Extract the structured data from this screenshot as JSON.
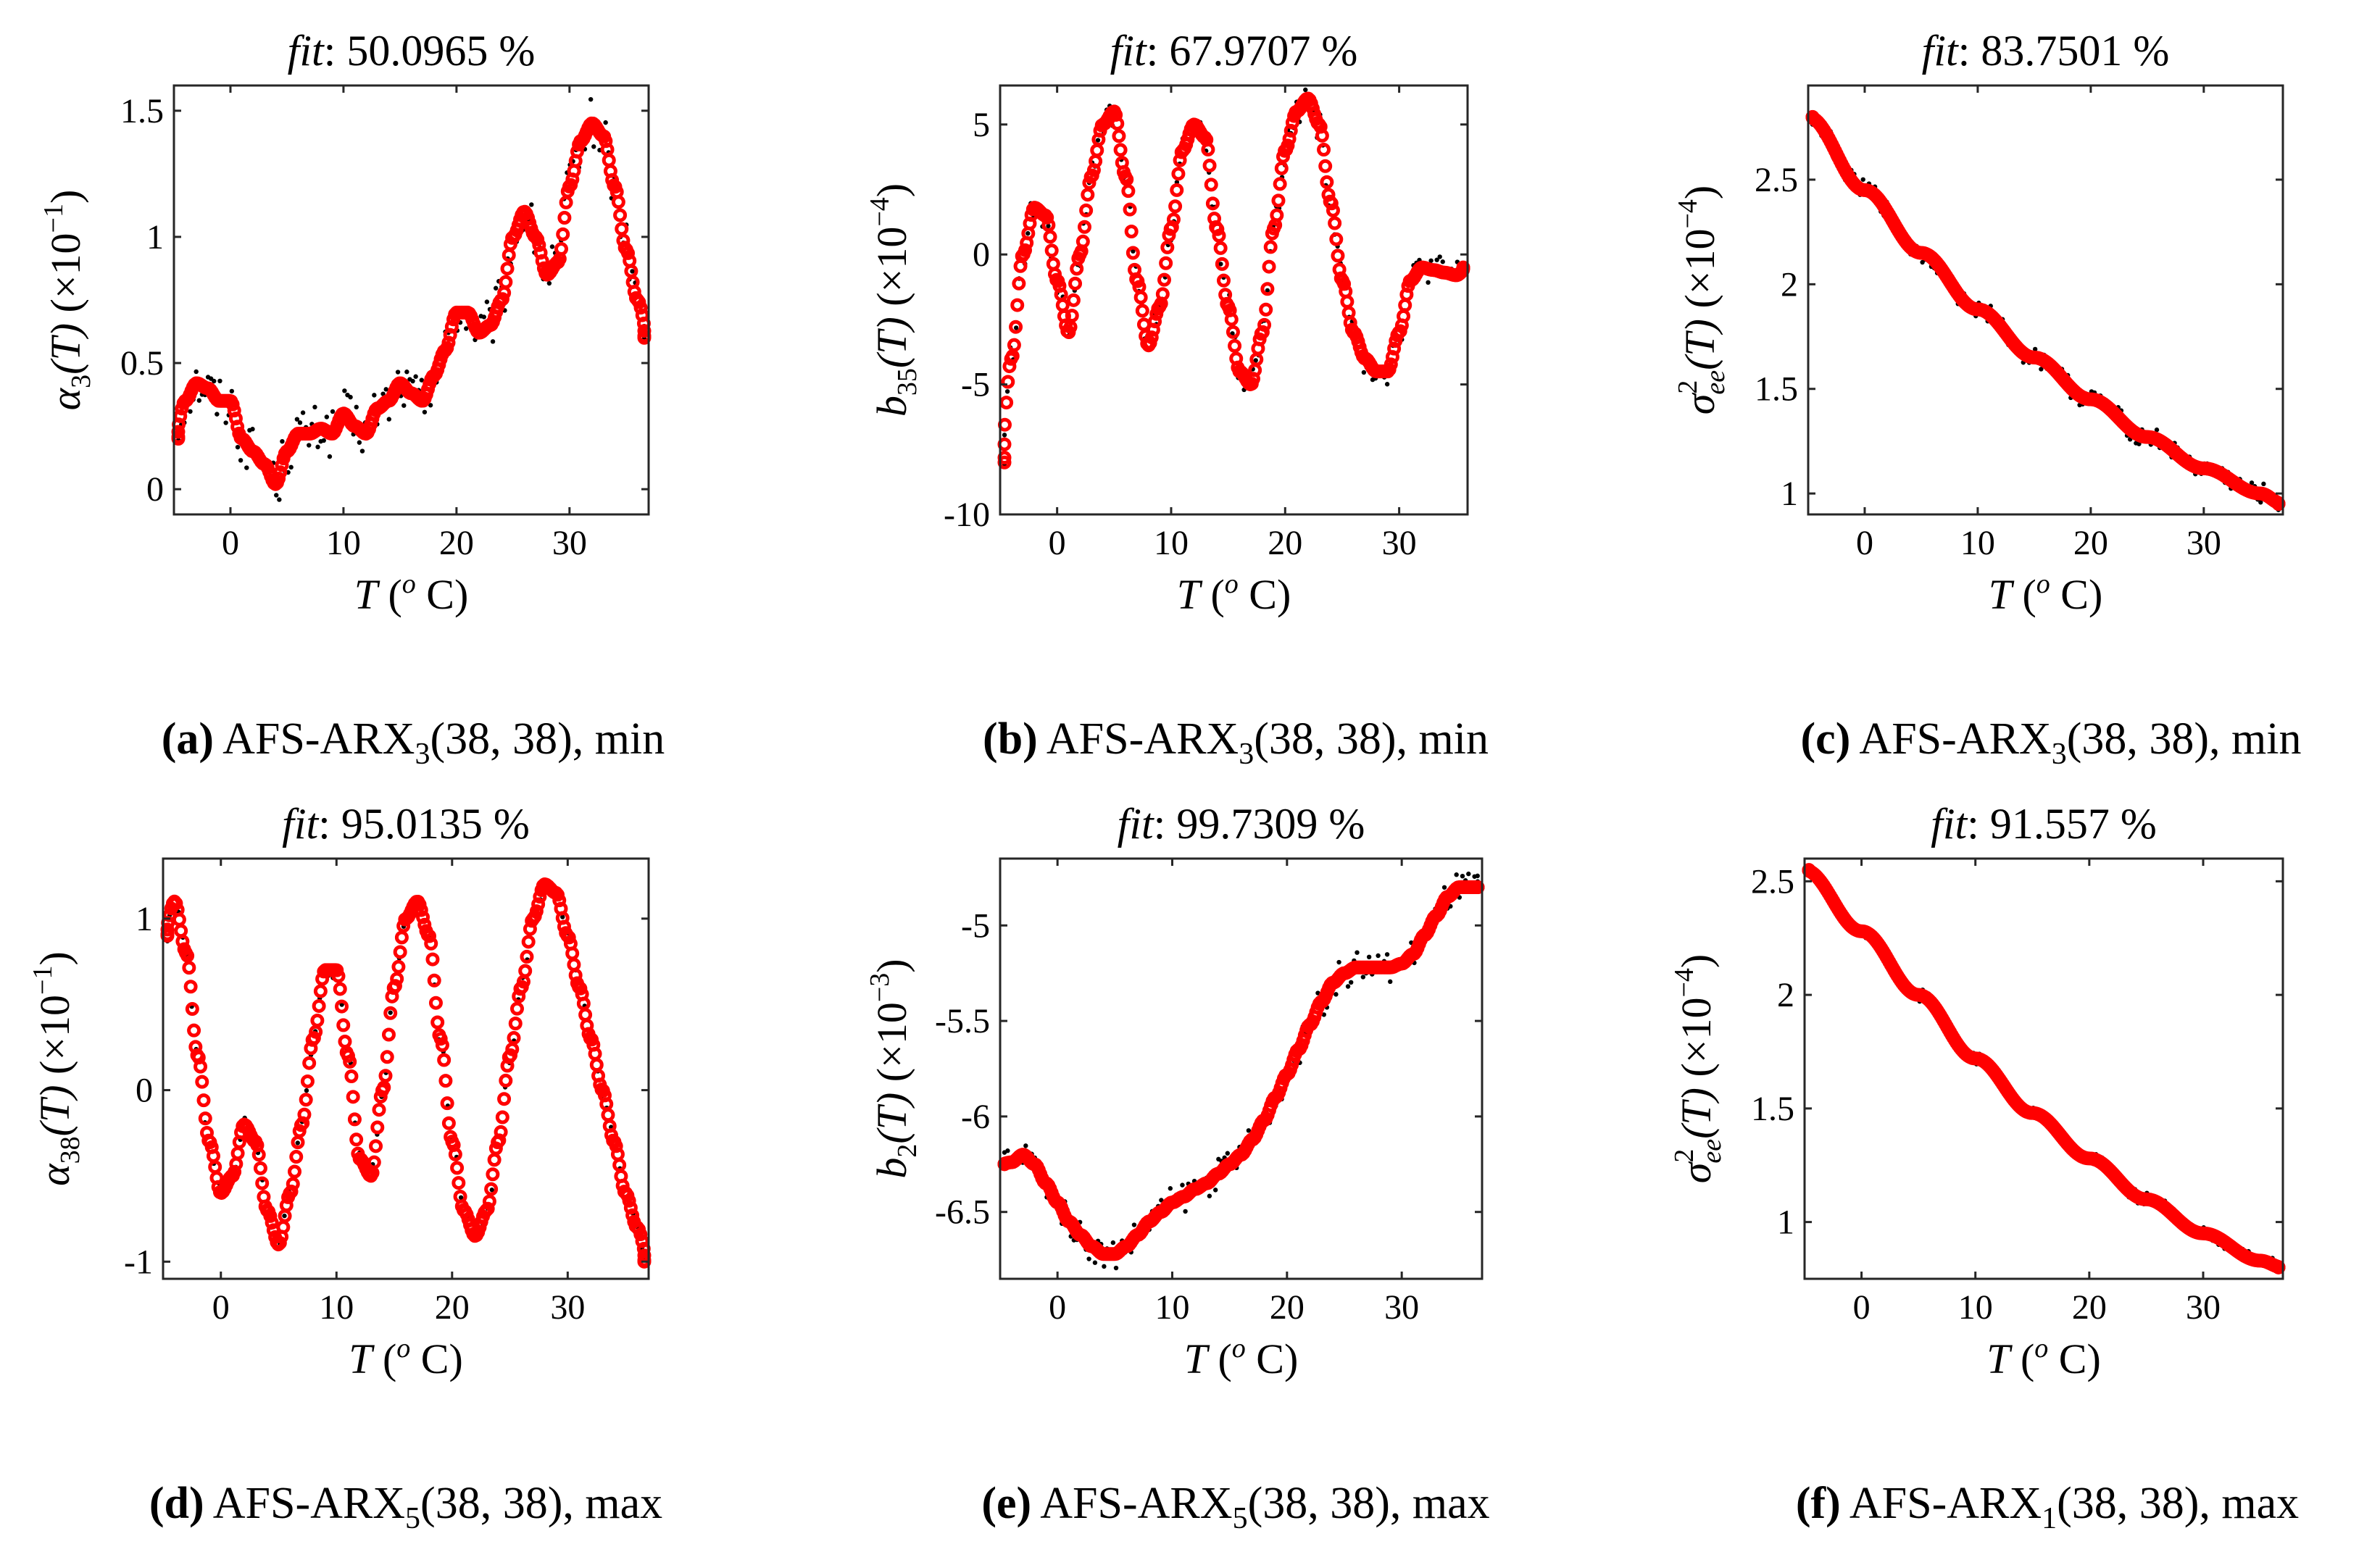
{
  "figure": {
    "colors": {
      "fit_marker": "#ff0000",
      "data_marker": "#000000",
      "axes": "#262626"
    }
  },
  "chart_data": [
    {
      "id": "a",
      "type": "scatter",
      "title_label": "fit",
      "title_value": "50.0965 %",
      "ylabel_sym": "α",
      "ylabel_sub": "3",
      "ylabel_sup": "",
      "ylabel_arg": "(T)",
      "ylabel_scale_base": "(×10",
      "ylabel_scale_exp": "−1",
      "ylabel_scale_close": ")",
      "xlabel_sym": "T",
      "xlabel_unit_open": " (",
      "xlabel_unit_sup": "o",
      "xlabel_unit_close": " C)",
      "xlim": [
        -5,
        37
      ],
      "ylim": [
        -0.1,
        1.6
      ],
      "xticks": [
        0,
        10,
        20,
        30
      ],
      "xtick_labels": [
        "0",
        "10",
        "20",
        "30"
      ],
      "yticks": [
        0,
        0.5,
        1,
        1.5
      ],
      "ytick_labels": [
        "0",
        "0.5",
        "1",
        "1.5"
      ],
      "fit_series": {
        "name": "fit",
        "x": [
          -5,
          -4,
          -3,
          -2,
          -1,
          0,
          1,
          2,
          3,
          4,
          5,
          6,
          7,
          8,
          9,
          10,
          11,
          12,
          13,
          14,
          15,
          16,
          17,
          18,
          19,
          20,
          21,
          22,
          23,
          24,
          25,
          26,
          27,
          28,
          29,
          30,
          31,
          32,
          33,
          34,
          35,
          36,
          37
        ],
        "y": [
          0.2,
          0.35,
          0.42,
          0.4,
          0.35,
          0.35,
          0.2,
          0.15,
          0.1,
          0.02,
          0.15,
          0.22,
          0.22,
          0.24,
          0.22,
          0.3,
          0.25,
          0.22,
          0.32,
          0.35,
          0.42,
          0.38,
          0.35,
          0.45,
          0.55,
          0.7,
          0.7,
          0.62,
          0.65,
          0.75,
          1.0,
          1.1,
          1.0,
          0.85,
          0.9,
          1.2,
          1.38,
          1.45,
          1.4,
          1.2,
          0.95,
          0.75,
          0.6
        ]
      },
      "data_series": {
        "name": "data",
        "source": "fit_series",
        "scatter_amplitude": 0.1,
        "scatter_count": 160
      }
    },
    {
      "id": "b",
      "type": "scatter",
      "title_label": "fit",
      "title_value": "67.9707 %",
      "ylabel_sym": "b",
      "ylabel_sub": "35",
      "ylabel_sup": "",
      "ylabel_arg": "(T)",
      "ylabel_scale_base": "(×10",
      "ylabel_scale_exp": "−4",
      "ylabel_scale_close": ")",
      "xlabel_sym": "T",
      "xlabel_unit_open": " (",
      "xlabel_unit_sup": "o",
      "xlabel_unit_close": " C)",
      "xlim": [
        -5,
        36
      ],
      "ylim": [
        -10,
        6.5
      ],
      "xticks": [
        0,
        10,
        20,
        30
      ],
      "xtick_labels": [
        "0",
        "10",
        "20",
        "30"
      ],
      "yticks": [
        -10,
        -5,
        0,
        5
      ],
      "ytick_labels": [
        "-10",
        "-5",
        "0",
        "5"
      ],
      "fit_series": {
        "name": "fit",
        "x": [
          -5,
          -4,
          -3,
          -2,
          -1,
          0,
          1,
          2,
          3,
          4,
          5,
          6,
          7,
          8,
          9,
          10,
          11,
          12,
          13,
          14,
          15,
          16,
          17,
          18,
          19,
          20,
          21,
          22,
          23,
          24,
          25,
          26,
          27,
          28,
          29,
          30,
          31,
          32,
          33,
          34,
          35,
          36
        ],
        "y": [
          -8,
          -4,
          0,
          1.8,
          1.5,
          -1,
          -3,
          0,
          3,
          5,
          5.5,
          3,
          -1,
          -3.5,
          -2,
          1,
          4,
          5,
          4.5,
          1,
          -2,
          -4.5,
          -5,
          -3,
          1,
          4,
          5.5,
          6,
          5,
          2,
          -1,
          -3,
          -4,
          -4.5,
          -4.5,
          -3,
          -1,
          -0.5,
          -0.6,
          -0.7,
          -0.8,
          -0.5
        ]
      },
      "data_series": {
        "name": "data",
        "source": "fit_series",
        "scatter_amplitude": 0.6,
        "scatter_count": 160
      }
    },
    {
      "id": "c",
      "type": "scatter",
      "title_label": "fit",
      "title_value": "83.7501 %",
      "ylabel_sym": "σ",
      "ylabel_sub": "ee",
      "ylabel_sup": "2",
      "ylabel_arg": "(T)",
      "ylabel_scale_base": "(×10",
      "ylabel_scale_exp": "−4",
      "ylabel_scale_close": ")",
      "xlabel_sym": "T",
      "xlabel_unit_open": " (",
      "xlabel_unit_sup": "o",
      "xlabel_unit_close": " C)",
      "xlim": [
        -5,
        37
      ],
      "ylim": [
        0.9,
        2.95
      ],
      "xticks": [
        0,
        10,
        20,
        30
      ],
      "xtick_labels": [
        "0",
        "10",
        "20",
        "30"
      ],
      "yticks": [
        1,
        1.5,
        2,
        2.5
      ],
      "ytick_labels": [
        "1",
        "1.5",
        "2",
        "2.5"
      ],
      "fit_series": {
        "name": "fit",
        "x": [
          -5,
          0,
          5,
          10,
          15,
          20,
          25,
          30,
          35,
          37
        ],
        "y": [
          2.8,
          2.45,
          2.15,
          1.88,
          1.65,
          1.45,
          1.27,
          1.12,
          1.0,
          0.95
        ]
      },
      "data_series": {
        "name": "data",
        "source": "fit_series",
        "scatter_amplitude": 0.05,
        "scatter_count": 160
      }
    },
    {
      "id": "d",
      "type": "scatter",
      "title_label": "fit",
      "title_value": "95.0135 %",
      "ylabel_sym": "α",
      "ylabel_sub": "38",
      "ylabel_sup": "",
      "ylabel_arg": "(T)",
      "ylabel_scale_base": "(×10",
      "ylabel_scale_exp": "−1",
      "ylabel_scale_close": ")",
      "xlabel_sym": "T",
      "xlabel_unit_open": " (",
      "xlabel_unit_sup": "o",
      "xlabel_unit_close": " C)",
      "xlim": [
        -5,
        37
      ],
      "ylim": [
        -1.1,
        1.35
      ],
      "xticks": [
        0,
        10,
        20,
        30
      ],
      "xtick_labels": [
        "0",
        "10",
        "20",
        "30"
      ],
      "yticks": [
        -1,
        0,
        1
      ],
      "ytick_labels": [
        "-1",
        "0",
        "1"
      ],
      "fit_series": {
        "name": "fit",
        "x": [
          -5,
          -4,
          -3,
          -2,
          -1,
          0,
          1,
          2,
          3,
          4,
          5,
          6,
          7,
          8,
          9,
          10,
          11,
          12,
          13,
          14,
          15,
          16,
          17,
          18,
          19,
          20,
          21,
          22,
          23,
          24,
          25,
          26,
          27,
          28,
          29,
          30,
          31,
          32,
          33,
          34,
          35,
          36,
          37
        ],
        "y": [
          0.9,
          1.1,
          0.8,
          0.2,
          -0.3,
          -0.6,
          -0.5,
          -0.2,
          -0.3,
          -0.7,
          -0.9,
          -0.6,
          -0.2,
          0.3,
          0.7,
          0.7,
          0.2,
          -0.4,
          -0.5,
          0.0,
          0.6,
          1.0,
          1.1,
          0.9,
          0.3,
          -0.3,
          -0.7,
          -0.85,
          -0.7,
          -0.3,
          0.2,
          0.6,
          1.0,
          1.2,
          1.15,
          0.9,
          0.6,
          0.3,
          0.0,
          -0.3,
          -0.6,
          -0.8,
          -1.0
        ]
      },
      "data_series": {
        "name": "data",
        "source": "fit_series",
        "scatter_amplitude": 0.05,
        "scatter_count": 110
      }
    },
    {
      "id": "e",
      "type": "scatter",
      "title_label": "fit",
      "title_value": "99.7309 %",
      "ylabel_sym": "b",
      "ylabel_sub": "2",
      "ylabel_sup": "",
      "ylabel_arg": "(T)",
      "ylabel_scale_base": "(×10",
      "ylabel_scale_exp": "−3",
      "ylabel_scale_close": ")",
      "xlabel_sym": "T",
      "xlabel_unit_open": " (",
      "xlabel_unit_sup": "o",
      "xlabel_unit_close": " C)",
      "xlim": [
        -5,
        37
      ],
      "ylim": [
        -6.85,
        -4.65
      ],
      "xticks": [
        0,
        10,
        20,
        30
      ],
      "xtick_labels": [
        "0",
        "10",
        "20",
        "30"
      ],
      "yticks": [
        -6.5,
        -6,
        -5.5,
        -5
      ],
      "ytick_labels": [
        "-6.5",
        "-6",
        "-5.5",
        "-5"
      ],
      "fit_series": {
        "name": "fit",
        "x": [
          -5,
          -4,
          -3,
          -2,
          -1,
          0,
          1,
          2,
          3,
          4,
          5,
          6,
          7,
          8,
          9,
          10,
          11,
          12,
          13,
          14,
          15,
          16,
          17,
          18,
          19,
          20,
          21,
          22,
          23,
          24,
          25,
          26,
          27,
          28,
          29,
          30,
          31,
          32,
          33,
          34,
          35,
          36,
          37
        ],
        "y": [
          -6.25,
          -6.24,
          -6.2,
          -6.25,
          -6.35,
          -6.45,
          -6.55,
          -6.62,
          -6.68,
          -6.72,
          -6.72,
          -6.68,
          -6.62,
          -6.55,
          -6.5,
          -6.45,
          -6.42,
          -6.38,
          -6.35,
          -6.3,
          -6.25,
          -6.2,
          -6.12,
          -6.02,
          -5.9,
          -5.78,
          -5.65,
          -5.52,
          -5.4,
          -5.3,
          -5.25,
          -5.22,
          -5.22,
          -5.22,
          -5.22,
          -5.2,
          -5.15,
          -5.05,
          -4.95,
          -4.85,
          -4.8,
          -4.8,
          -4.8
        ]
      },
      "data_series": {
        "name": "data",
        "source": "fit_series",
        "scatter_amplitude": 0.08,
        "scatter_count": 160
      }
    },
    {
      "id": "f",
      "type": "scatter",
      "title_label": "fit",
      "title_value": "91.557 %",
      "ylabel_sym": "σ",
      "ylabel_sub": "ee",
      "ylabel_sup": "2",
      "ylabel_arg": "(T)",
      "ylabel_scale_base": "(×10",
      "ylabel_scale_exp": "−4",
      "ylabel_scale_close": ")",
      "xlabel_sym": "T",
      "xlabel_unit_open": " (",
      "xlabel_unit_sup": "o",
      "xlabel_unit_close": " C)",
      "xlim": [
        -5,
        37
      ],
      "ylim": [
        0.75,
        2.6
      ],
      "xticks": [
        0,
        10,
        20,
        30
      ],
      "xtick_labels": [
        "0",
        "10",
        "20",
        "30"
      ],
      "yticks": [
        1,
        1.5,
        2,
        2.5
      ],
      "ytick_labels": [
        "1",
        "1.5",
        "2",
        "2.5"
      ],
      "fit_series": {
        "name": "fit",
        "x": [
          -5,
          0,
          5,
          10,
          15,
          20,
          25,
          30,
          35,
          37
        ],
        "y": [
          2.55,
          2.28,
          2.0,
          1.72,
          1.48,
          1.28,
          1.1,
          0.95,
          0.83,
          0.8
        ]
      },
      "data_series": {
        "name": "data",
        "source": "fit_series",
        "scatter_amplitude": 0.03,
        "scatter_count": 160
      }
    }
  ],
  "captions": [
    {
      "letter": "(a)",
      "model": " AFS-ARX",
      "sub": "3",
      "args": "(38, 38), min"
    },
    {
      "letter": "(b)",
      "model": " AFS-ARX",
      "sub": "3",
      "args": "(38, 38), min"
    },
    {
      "letter": "(c)",
      "model": " AFS-ARX",
      "sub": "3",
      "args": "(38, 38), min"
    },
    {
      "letter": "(d)",
      "model": " AFS-ARX",
      "sub": "5",
      "args": "(38, 38), max"
    },
    {
      "letter": "(e)",
      "model": " AFS-ARX",
      "sub": "5",
      "args": "(38, 38), max"
    },
    {
      "letter": "(f)",
      "model": " AFS-ARX",
      "sub": "1",
      "args": "(38, 38), max"
    }
  ]
}
